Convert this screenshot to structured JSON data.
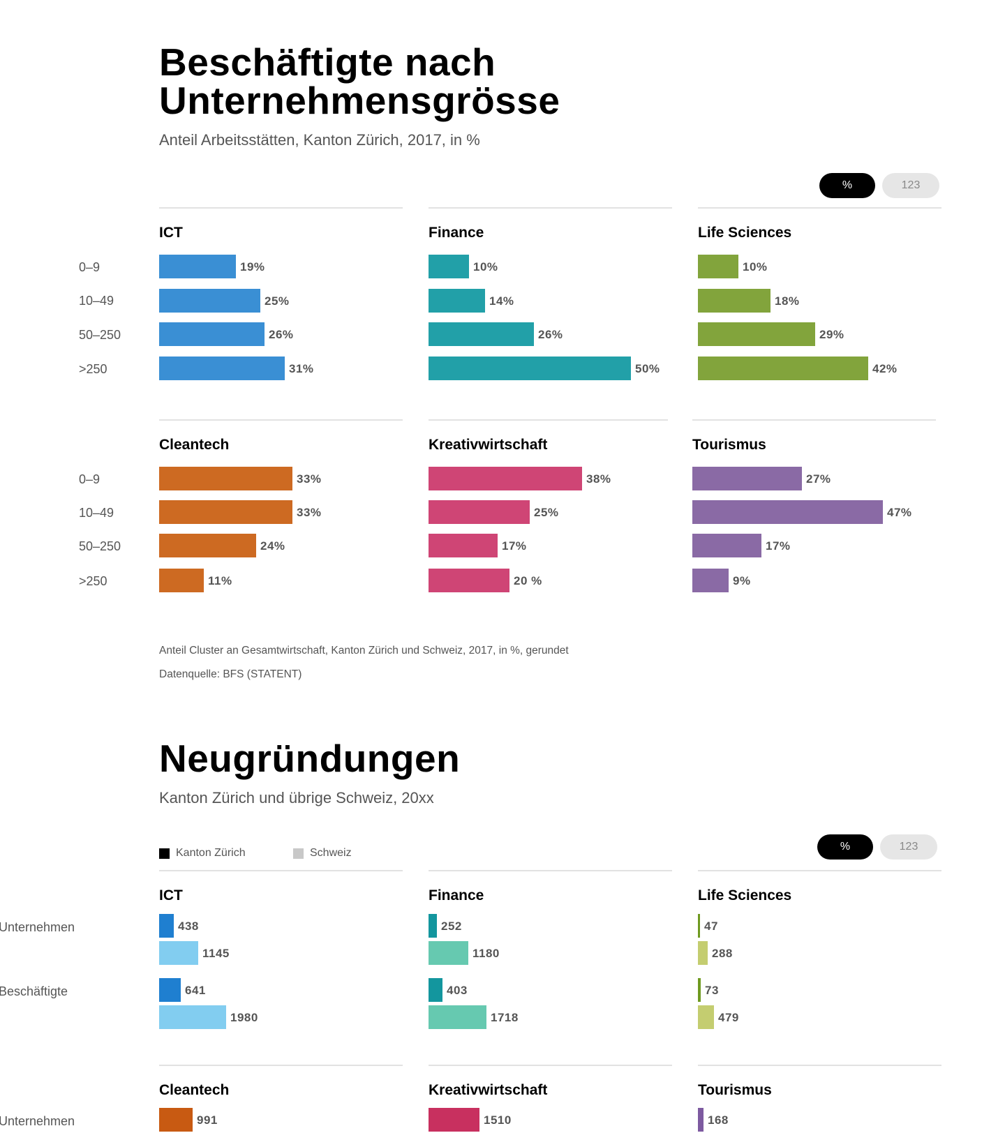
{
  "colors": {
    "ICT": "#3a8fd4",
    "Finance": "#22a0a8",
    "Life Sciences": "#82a43c",
    "Cleantech": "#cd6a22",
    "Kreativwirtschaft": "#cf4575",
    "Tourismus": "#8a6aa5",
    "ICT_ch": "#82cdf0",
    "Finance_ch": "#66c9b0",
    "LifeSciences_ch": "#c4cd70",
    "ICT_zh": "#1f7fd0",
    "Finance_zh": "#13969e",
    "LifeSciences_zh": "#6f9a20",
    "Cleantech_zh": "#c85a12",
    "Kreativwirtschaft_zh": "#c8305f",
    "Tourismus_zh": "#7d5aa0"
  },
  "section1": {
    "title_line1": "Beschäftigte nach",
    "title_line2": "Unternehmensgrösse",
    "subtitle": "Anteil Arbeitsstätten, Kanton Zürich, 2017, in %",
    "toggle_percent": "%",
    "toggle_number": "123",
    "row_labels": [
      "0–9",
      "10–49",
      "50–250",
      ">250"
    ],
    "note": "Anteil Cluster an Gesamtwirtschaft, Kanton Zürich und Schweiz, 2017, in %, gerundet",
    "source": "Datenquelle: BFS (STATENT)"
  },
  "section2": {
    "title": "Neugründungen",
    "subtitle": "Kanton Zürich und übrige Schweiz, 20xx",
    "toggle_percent": "%",
    "toggle_number": "123",
    "legend_zh": "Kanton Zürich",
    "legend_ch": "Schweiz",
    "row_unternehmen": "Unternehmen",
    "row_beschaeftigte": "Beschäftigte"
  },
  "chart_data": [
    {
      "type": "bar",
      "title": "Beschäftigte nach Unternehmensgrösse",
      "subtitle": "Anteil Arbeitsstätten, Kanton Zürich, 2017, in %",
      "orientation": "horizontal",
      "categories": [
        "0–9",
        "10–49",
        "50–250",
        ">250"
      ],
      "unit": "%",
      "panels": [
        {
          "name": "ICT",
          "values": [
            19,
            25,
            26,
            31
          ],
          "labels": [
            "19%",
            "25%",
            "26%",
            "31%"
          ]
        },
        {
          "name": "Finance",
          "values": [
            10,
            14,
            26,
            50
          ],
          "labels": [
            "10%",
            "14%",
            "26%",
            "50%"
          ]
        },
        {
          "name": "Life Sciences",
          "values": [
            10,
            18,
            29,
            42
          ],
          "labels": [
            "10%",
            "18%",
            "29%",
            "42%"
          ]
        },
        {
          "name": "Cleantech",
          "values": [
            33,
            33,
            24,
            11
          ],
          "labels": [
            "33%",
            "33%",
            "24%",
            "11%"
          ]
        },
        {
          "name": "Kreativwirtschaft",
          "values": [
            38,
            25,
            17,
            20
          ],
          "labels": [
            "38%",
            "25%",
            "17%",
            "20 %"
          ]
        },
        {
          "name": "Tourismus",
          "values": [
            27,
            47,
            17,
            9
          ],
          "labels": [
            "27%",
            "47%",
            "17%",
            "9%"
          ]
        }
      ]
    },
    {
      "type": "bar",
      "title": "Neugründungen",
      "subtitle": "Kanton Zürich und übrige Schweiz, 20xx",
      "orientation": "horizontal",
      "series_names": [
        "Kanton Zürich",
        "Schweiz"
      ],
      "groups": [
        "Unternehmen",
        "Beschäftigte"
      ],
      "panels": [
        {
          "name": "ICT",
          "Unternehmen": [
            438,
            1145
          ],
          "Beschäftigte": [
            641,
            1980
          ]
        },
        {
          "name": "Finance",
          "Unternehmen": [
            252,
            1180
          ],
          "Beschäftigte": [
            403,
            1718
          ]
        },
        {
          "name": "Life Sciences",
          "Unternehmen": [
            47,
            288
          ],
          "Beschäftigte": [
            73,
            479
          ]
        },
        {
          "name": "Cleantech",
          "Unternehmen": [
            991
          ]
        },
        {
          "name": "Kreativwirtschaft",
          "Unternehmen": [
            1510
          ]
        },
        {
          "name": "Tourismus",
          "Unternehmen": [
            168
          ]
        }
      ]
    }
  ]
}
